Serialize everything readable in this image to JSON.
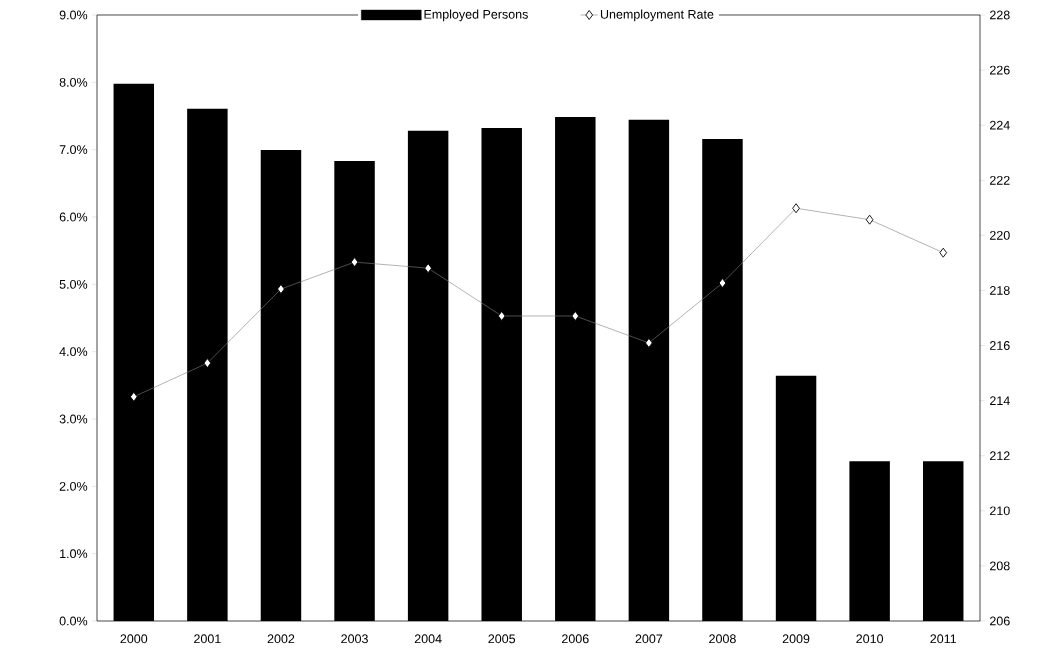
{
  "chart_data": {
    "type": "bar",
    "categories": [
      "2000",
      "2001",
      "2002",
      "2003",
      "2004",
      "2005",
      "2006",
      "2007",
      "2008",
      "2009",
      "2010",
      "2011"
    ],
    "series": [
      {
        "name": "Employed Persons",
        "axis": "y2",
        "color": "#000000",
        "values": [
          225.5,
          224.6,
          223.1,
          222.7,
          223.8,
          223.9,
          224.3,
          224.2,
          223.5,
          214.9,
          211.8,
          211.8
        ]
      },
      {
        "name": "Unemployment Rate",
        "type": "line",
        "color": "#808080",
        "marker": "diamond",
        "values": [
          3.33,
          3.83,
          4.93,
          5.33,
          5.24,
          4.53,
          4.53,
          4.13,
          5.02,
          6.13,
          5.96,
          5.47
        ]
      }
    ],
    "ylim": [
      0,
      9
    ],
    "yticks": [
      {
        "value": 0,
        "label": "0.0%"
      },
      {
        "value": 1,
        "label": "1.0%"
      },
      {
        "value": 2,
        "label": "2.0%"
      },
      {
        "value": 3,
        "label": "3.0%"
      },
      {
        "value": 4,
        "label": "4.0%"
      },
      {
        "value": 5,
        "label": "5.0%"
      },
      {
        "value": 6,
        "label": "6.0%"
      },
      {
        "value": 7,
        "label": "7.0%"
      },
      {
        "value": 8,
        "label": "8.0%"
      },
      {
        "value": 9,
        "label": "9.0%"
      }
    ],
    "y2lim": [
      206,
      228
    ],
    "y2ticks": [
      206,
      208,
      210,
      212,
      214,
      216,
      218,
      220,
      222,
      224,
      226,
      228
    ],
    "legend": "top"
  }
}
